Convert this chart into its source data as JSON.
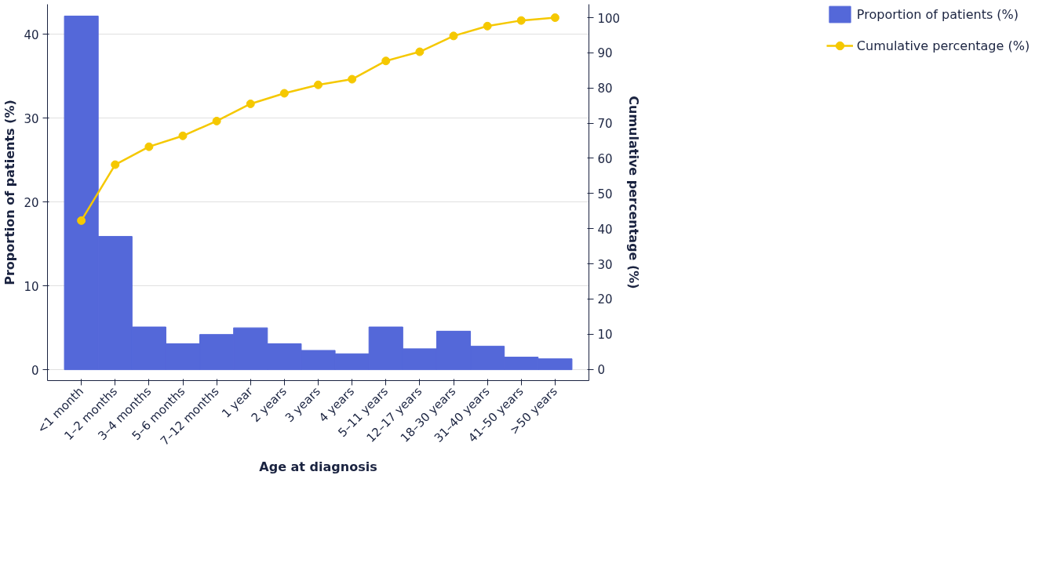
{
  "chart_data": {
    "type": "bar",
    "xlabel": "Age at diagnosis",
    "ylabel": "Proportion of patients (%)",
    "y2label": "Cumulative percentage (%)",
    "categories": [
      "<1 month",
      "1–2 months",
      "3–4 months",
      "5–6 months",
      "7–12 months",
      "1 year",
      "2 years",
      "3 years",
      "4 years",
      "5–11 years",
      "12–17 years",
      "18–30 years",
      "31–40 years",
      "41–50 years",
      ">50 years"
    ],
    "series": [
      {
        "name": "Proportion of patients (%)",
        "color": "#5468d9",
        "values": [
          42.2,
          15.9,
          5.1,
          3.1,
          4.2,
          5.0,
          3.1,
          2.3,
          1.9,
          5.1,
          2.5,
          4.6,
          2.8,
          1.5,
          1.3
        ]
      },
      {
        "name": "Cumulative percentage (%)",
        "type": "line",
        "axis": "y2",
        "color": "#f5c800",
        "values": [
          42.3,
          58.2,
          63.3,
          66.4,
          70.6,
          75.5,
          78.5,
          80.9,
          82.5,
          87.7,
          90.3,
          94.8,
          97.6,
          99.2,
          100
        ]
      }
    ],
    "ylim": [
      -1.3,
      43.6
    ],
    "yticks": [
      0,
      10,
      20,
      30,
      40
    ],
    "y2lim": [
      -3.2,
      103.8
    ],
    "y2ticks": [
      0,
      10,
      20,
      30,
      40,
      50,
      60,
      70,
      80,
      90,
      100
    ],
    "grid": "y",
    "legend": "top right",
    "marker": "circle",
    "line_style": "solid"
  }
}
